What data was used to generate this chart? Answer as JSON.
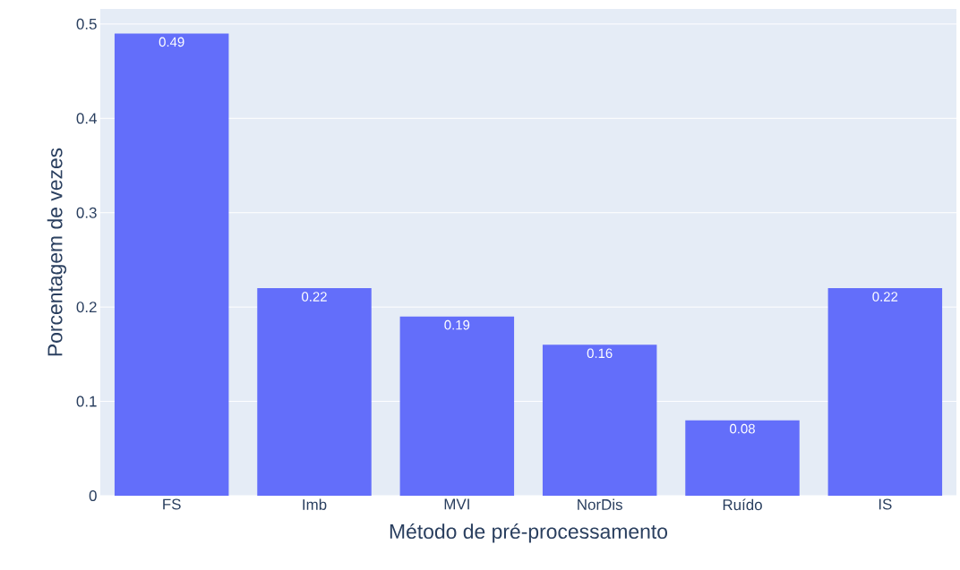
{
  "chart_data": {
    "type": "bar",
    "xlabel": "Método de pré-processamento",
    "ylabel": "Porcentagem de vezes",
    "categories": [
      "FS",
      "Imb",
      "MVI",
      "NorDis",
      "Ruído",
      "IS"
    ],
    "values": [
      0.49,
      0.22,
      0.19,
      0.16,
      0.08,
      0.22
    ],
    "color": "#636efa",
    "ylim": [
      0,
      0.516
    ],
    "yticks": [
      0,
      0.1,
      0.2,
      0.3,
      0.4,
      0.5
    ],
    "grid": "y",
    "data_labels": true
  }
}
